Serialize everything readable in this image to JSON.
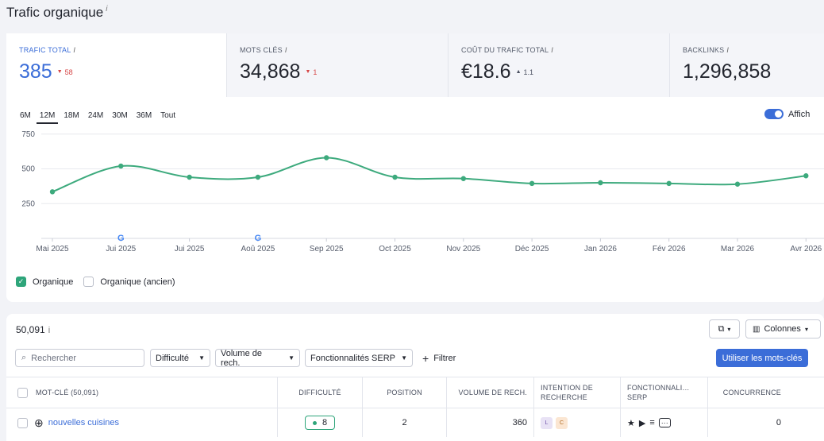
{
  "page": {
    "title": "Trafic organique",
    "title_info": "i"
  },
  "kpis": [
    {
      "label": "Trafic total",
      "info": "i",
      "value": "385",
      "delta": "58",
      "delta_dir": "down"
    },
    {
      "label": "Mots clés",
      "info": "i",
      "value": "34,868",
      "delta": "1",
      "delta_dir": "down"
    },
    {
      "label": "Coût du trafic total",
      "info": "i",
      "value": "€18.6",
      "delta": "1.1",
      "delta_dir": "up"
    },
    {
      "label": "Backlinks",
      "info": "i",
      "value": "1,296,858"
    }
  ],
  "periods": [
    "6M",
    "12M",
    "18M",
    "24M",
    "30M",
    "36M",
    "Tout"
  ],
  "active_period": "12M",
  "toggle": {
    "label": "Affich",
    "on": true
  },
  "legend": [
    {
      "label": "Organique",
      "checked": true
    },
    {
      "label": "Organique (ancien)",
      "checked": false
    }
  ],
  "chart_data": {
    "type": "line",
    "x": [
      "Mai 2025",
      "Jui 2025",
      "Jui 2025",
      "Aoû 2025",
      "Sep 2025",
      "Oct 2025",
      "Nov 2025",
      "Déc 2025",
      "Jan 2026",
      "Fév 2026",
      "Mar 2026",
      "Avr 2026"
    ],
    "series": [
      {
        "name": "Organique",
        "values": [
          335,
          520,
          440,
          440,
          580,
          440,
          430,
          395,
          400,
          395,
          390,
          450
        ],
        "color": "#3daa7d"
      }
    ],
    "yticks": [
      250,
      500,
      750
    ],
    "ylim": [
      0,
      800
    ],
    "google_markers": [
      "Jui 2025",
      "Aoû 2025"
    ],
    "grid": true
  },
  "table": {
    "count": "50,091",
    "count_info": "i",
    "columns_label": "Colonnes",
    "search_placeholder": "Rechercher",
    "filters": [
      "Difficulté",
      "Volume de rech.",
      "Fonctionnalités SERP"
    ],
    "filter_button": "Filtrer",
    "use_button": "Utiliser les mots-clés",
    "headers": {
      "keyword": "Mot-clé",
      "keyword_count": "(50,091)",
      "difficulty": "Difficulté",
      "position": "Position",
      "volume": "Volume de rech.",
      "intent": "Intention de recherche",
      "serp": "Fonctionnali… SERP",
      "competition": "Concurrence"
    },
    "rows": [
      {
        "keyword": "nouvelles cuisines",
        "difficulty": "8",
        "position": "2",
        "volume": "360",
        "intent": [
          "L",
          "C"
        ],
        "competition": "0"
      }
    ]
  }
}
